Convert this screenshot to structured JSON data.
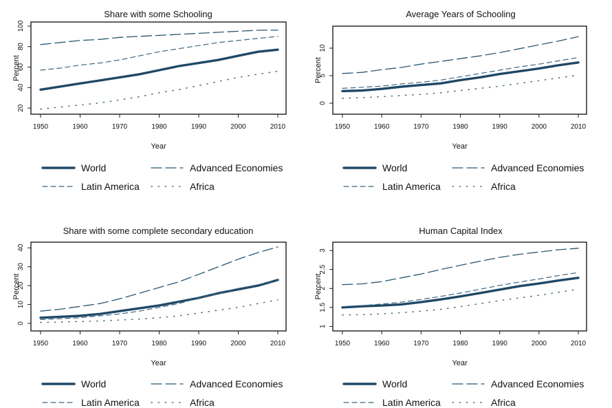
{
  "chart_data": [
    {
      "type": "line",
      "title": "Share with some Schooling",
      "xlabel": "Year",
      "ylabel": "Percent",
      "xlim": [
        1950,
        2010
      ],
      "ylim": [
        14,
        104
      ],
      "xticks": [
        "1950",
        "1960",
        "1970",
        "1980",
        "1990",
        "2000",
        "2010"
      ],
      "yticks": [
        "20",
        "40",
        "60",
        "80",
        "100"
      ],
      "grid": false,
      "legend_position": "bottom",
      "series": [
        {
          "name": "World",
          "x": [
            1950,
            1955,
            1960,
            1965,
            1970,
            1975,
            1980,
            1985,
            1990,
            1995,
            2000,
            2005,
            2010
          ],
          "values": [
            38,
            41,
            44,
            47,
            50,
            53,
            57,
            61,
            64,
            67,
            71,
            75,
            77
          ]
        },
        {
          "name": "Advanced Economies",
          "x": [
            1950,
            1955,
            1960,
            1965,
            1970,
            1975,
            1980,
            1985,
            1990,
            1995,
            2000,
            2005,
            2010
          ],
          "values": [
            82,
            84,
            86,
            87,
            89,
            90,
            91,
            92,
            93,
            94,
            95,
            96,
            96
          ]
        },
        {
          "name": "Latin America",
          "x": [
            1950,
            1955,
            1960,
            1965,
            1970,
            1975,
            1980,
            1985,
            1990,
            1995,
            2000,
            2005,
            2010
          ],
          "values": [
            57,
            59,
            62,
            64,
            67,
            71,
            75,
            78,
            81,
            84,
            86,
            88,
            90
          ]
        },
        {
          "name": "Africa",
          "x": [
            1950,
            1955,
            1960,
            1965,
            1970,
            1975,
            1980,
            1985,
            1990,
            1995,
            2000,
            2005,
            2010
          ],
          "values": [
            19,
            21,
            23,
            25,
            28,
            31,
            35,
            38,
            42,
            46,
            50,
            53,
            56
          ]
        }
      ]
    },
    {
      "type": "line",
      "title": "Average Years of Schooling",
      "xlabel": "Year",
      "ylabel": "Percent",
      "xlim": [
        1950,
        2010
      ],
      "ylim": [
        -2,
        14
      ],
      "xticks": [
        "1950",
        "1960",
        "1970",
        "1980",
        "1990",
        "2000",
        "2010"
      ],
      "yticks": [
        "0",
        "5",
        "10"
      ],
      "grid": false,
      "legend_position": "bottom",
      "series": [
        {
          "name": "World",
          "x": [
            1950,
            1955,
            1960,
            1965,
            1970,
            1975,
            1980,
            1985,
            1990,
            1995,
            2000,
            2005,
            2010
          ],
          "values": [
            2.2,
            2.3,
            2.6,
            3.0,
            3.3,
            3.6,
            4.2,
            4.7,
            5.3,
            5.8,
            6.3,
            6.9,
            7.4
          ]
        },
        {
          "name": "Advanced Economies",
          "x": [
            1950,
            1955,
            1960,
            1965,
            1970,
            1975,
            1980,
            1985,
            1990,
            1995,
            2000,
            2005,
            2010
          ],
          "values": [
            5.4,
            5.6,
            6.1,
            6.5,
            7.1,
            7.6,
            8.1,
            8.6,
            9.2,
            9.9,
            10.6,
            11.3,
            12.1
          ]
        },
        {
          "name": "Latin America",
          "x": [
            1950,
            1955,
            1960,
            1965,
            1970,
            1975,
            1980,
            1985,
            1990,
            1995,
            2000,
            2005,
            2010
          ],
          "values": [
            2.7,
            2.9,
            3.1,
            3.5,
            3.8,
            4.2,
            4.8,
            5.4,
            6.0,
            6.6,
            7.1,
            7.7,
            8.3
          ]
        },
        {
          "name": "Africa",
          "x": [
            1950,
            1955,
            1960,
            1965,
            1970,
            1975,
            1980,
            1985,
            1990,
            1995,
            2000,
            2005,
            2010
          ],
          "values": [
            0.9,
            1.0,
            1.2,
            1.4,
            1.6,
            1.9,
            2.3,
            2.7,
            3.1,
            3.6,
            4.1,
            4.6,
            5.1
          ]
        }
      ]
    },
    {
      "type": "line",
      "title": "Share with some complete secondary education",
      "xlabel": "Year",
      "ylabel": "Percent",
      "xlim": [
        1950,
        2010
      ],
      "ylim": [
        -4,
        43
      ],
      "xticks": [
        "1950",
        "1960",
        "1970",
        "1980",
        "1990",
        "2000",
        "2010"
      ],
      "yticks": [
        "0",
        "10",
        "20",
        "30",
        "40"
      ],
      "grid": false,
      "legend_position": "bottom",
      "series": [
        {
          "name": "World",
          "x": [
            1950,
            1955,
            1960,
            1965,
            1970,
            1975,
            1980,
            1985,
            1990,
            1995,
            2000,
            2005,
            2010
          ],
          "values": [
            3,
            3.5,
            4,
            5,
            6.5,
            8,
            9.5,
            11.5,
            13.5,
            16,
            18,
            20,
            23
          ]
        },
        {
          "name": "Advanced Economies",
          "x": [
            1950,
            1955,
            1960,
            1965,
            1970,
            1975,
            1980,
            1985,
            1990,
            1995,
            2000,
            2005,
            2010
          ],
          "values": [
            6.5,
            7.5,
            9,
            10.5,
            13,
            16,
            19,
            22,
            26,
            30,
            34,
            37.5,
            40.5
          ]
        },
        {
          "name": "Latin America",
          "x": [
            1950,
            1955,
            1960,
            1965,
            1970,
            1975,
            1980,
            1985,
            1990,
            1995,
            2000,
            2005,
            2010
          ],
          "values": [
            2,
            2.5,
            3,
            4,
            5,
            6.5,
            8.5,
            10.5,
            13.5,
            16,
            18.5,
            20.5,
            23
          ]
        },
        {
          "name": "Africa",
          "x": [
            1950,
            1955,
            1960,
            1965,
            1970,
            1975,
            1980,
            1985,
            1990,
            1995,
            2000,
            2005,
            2010
          ],
          "values": [
            0.5,
            0.7,
            1,
            1.3,
            1.8,
            2.3,
            3,
            4,
            5.5,
            7,
            8.5,
            10.5,
            12.5
          ]
        }
      ]
    },
    {
      "type": "line",
      "title": "Human Capital Index",
      "xlabel": "Year",
      "ylabel": "Percent",
      "xlim": [
        1950,
        2010
      ],
      "ylim": [
        0.88,
        3.22
      ],
      "xticks": [
        "1950",
        "1960",
        "1970",
        "1980",
        "1990",
        "2000",
        "2010"
      ],
      "yticks": [
        "1",
        "1.5",
        "2",
        "2.5",
        "3"
      ],
      "grid": false,
      "legend_position": "bottom",
      "series": [
        {
          "name": "World",
          "x": [
            1950,
            1955,
            1960,
            1965,
            1970,
            1975,
            1980,
            1985,
            1990,
            1995,
            2000,
            2005,
            2010
          ],
          "values": [
            1.5,
            1.53,
            1.55,
            1.58,
            1.64,
            1.71,
            1.79,
            1.88,
            1.97,
            2.06,
            2.13,
            2.21,
            2.28
          ]
        },
        {
          "name": "Advanced Economies",
          "x": [
            1950,
            1955,
            1960,
            1965,
            1970,
            1975,
            1980,
            1985,
            1990,
            1995,
            2000,
            2005,
            2010
          ],
          "values": [
            2.1,
            2.12,
            2.18,
            2.28,
            2.38,
            2.5,
            2.61,
            2.72,
            2.82,
            2.9,
            2.96,
            3.02,
            3.06
          ]
        },
        {
          "name": "Latin America",
          "x": [
            1950,
            1955,
            1960,
            1965,
            1970,
            1975,
            1980,
            1985,
            1990,
            1995,
            2000,
            2005,
            2010
          ],
          "values": [
            1.52,
            1.55,
            1.59,
            1.64,
            1.71,
            1.79,
            1.88,
            1.98,
            2.08,
            2.17,
            2.25,
            2.34,
            2.42
          ]
        },
        {
          "name": "Africa",
          "x": [
            1950,
            1955,
            1960,
            1965,
            1970,
            1975,
            1980,
            1985,
            1990,
            1995,
            2000,
            2005,
            2010
          ],
          "values": [
            1.3,
            1.31,
            1.33,
            1.36,
            1.4,
            1.45,
            1.52,
            1.6,
            1.68,
            1.75,
            1.82,
            1.9,
            1.98
          ]
        }
      ]
    }
  ],
  "legend": {
    "items": [
      "World",
      "Advanced Economies",
      "Latin America",
      "Africa"
    ]
  },
  "colors": {
    "World": "#1f4866",
    "Advanced Economies": "#285672",
    "Latin America": "#3f6680",
    "Africa": "#4f6f82",
    "axis": "#1d1d1d"
  }
}
